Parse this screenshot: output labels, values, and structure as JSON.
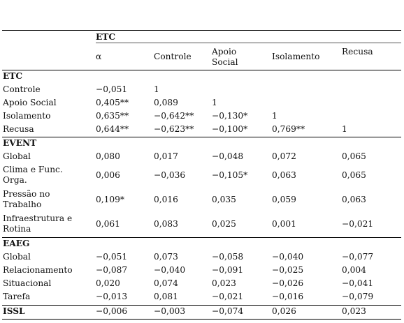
{
  "header": {
    "group_label": "ETC",
    "columns": [
      "α",
      "Controle",
      "Apoio\nSocial",
      "Isolamento",
      "Recusa"
    ]
  },
  "sections": [
    {
      "title": "ETC",
      "rows": [
        {
          "label": "Controle",
          "values": [
            "−0,051",
            "1",
            "",
            "",
            ""
          ]
        },
        {
          "label": "Apoio Social",
          "values": [
            "0,405**",
            "0,089",
            "1",
            "",
            ""
          ]
        },
        {
          "label": "Isolamento",
          "values": [
            "0,635**",
            "−0,642**",
            "−0,130*",
            "1",
            ""
          ]
        },
        {
          "label": "Recusa",
          "values": [
            "0,644**",
            "−0,623**",
            "−0,100*",
            "0,769**",
            "1"
          ]
        }
      ]
    },
    {
      "title": "EVENT",
      "rows": [
        {
          "label": "Global",
          "values": [
            "0,080",
            "0,017",
            "−0,048",
            "0,072",
            "0,065"
          ]
        },
        {
          "label": "Clima e Func.\nOrga.",
          "values": [
            "0,006",
            "−0,036",
            "−0,105*",
            "0,063",
            "0,065"
          ]
        },
        {
          "label": "Pressão no\nTrabalho",
          "values": [
            "0,109*",
            "0,016",
            "0,035",
            "0,059",
            "0,063"
          ]
        },
        {
          "label": "Infraestrutura e\nRotina",
          "values": [
            "0,061",
            "0,083",
            "0,025",
            "0,001",
            "−0,021"
          ]
        }
      ]
    },
    {
      "title": "EAEG",
      "rows": [
        {
          "label": "Global",
          "values": [
            "−0,051",
            "0,073",
            "−0,058",
            "−0,040",
            "−0,077"
          ]
        },
        {
          "label": "Relacionamento",
          "values": [
            "−0,087",
            "−0,040",
            "−0,091",
            "−0,025",
            "0,004"
          ]
        },
        {
          "label": "Situacional",
          "values": [
            "0,020",
            "0,074",
            "0,023",
            "−0,026",
            "−0,041"
          ]
        },
        {
          "label": "Tarefa",
          "values": [
            "−0,013",
            "0,081",
            "−0,021",
            "−0,016",
            "−0,079"
          ]
        }
      ]
    }
  ],
  "footer_row": {
    "label": "ISSL",
    "values": [
      "−0,006",
      "−0,003",
      "−0,074",
      "0,026",
      "0,023"
    ]
  }
}
